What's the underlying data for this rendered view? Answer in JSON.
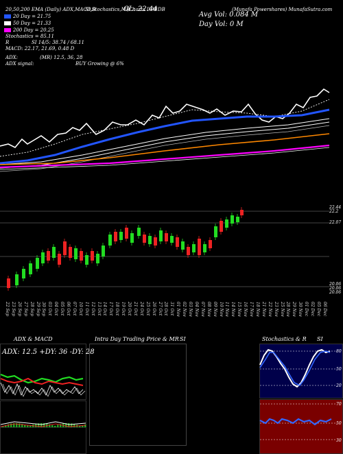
{
  "header": {
    "ema_line": "20,50,200 EMA (Daily) ADX,MACD,B",
    "ema_line2": "SI,Stochastics,MR",
    "cl_label": "CL: 22.44",
    "symbol_line": "(Charts DBB",
    "symbol2": "DB",
    "avg_vol": "Avg Vol: 0.084  M",
    "day_vol": "Day Vol: 0   M",
    "site": "(Munafa Powershares) MunafaSutra.com"
  },
  "legend": [
    {
      "label": "20  Day = 21.75",
      "color": "#2255ff"
    },
    {
      "label": "50  Day = 21.33",
      "color": "#ffffff"
    },
    {
      "label": "200  Day = 20.25",
      "color": "#ff00ff"
    }
  ],
  "indicators": {
    "stochastics": "Stochastics = 85.11",
    "si": "SI  14/5: 38.74 / 68.11",
    "r": "R",
    "macd": "MACD: 22.17, 21.69, 0.48  D",
    "adx": "ADX:",
    "adx_mr": "(MR) 12.5,  36,  28",
    "adx_signal": "ADX  signal:",
    "buy_signal": "BUY Growing @ 6%"
  },
  "price_axis": {
    "top1": "22.44",
    "top2": "22.2",
    "mid": "22.07",
    "low1": "20.06",
    "low2": "20.06",
    "low3": "20.06"
  },
  "x_labels": [
    "22 Sep",
    "23 Sep",
    "26 Sep",
    "27 Sep",
    "28 Sep",
    "29 Sep",
    "30 Sep",
    "03 Oct",
    "04 Oct",
    "05 Oct",
    "06 Oct",
    "07 Oct",
    "10 Oct",
    "11 Oct",
    "12 Oct",
    "13 Oct",
    "14 Oct",
    "17 Oct",
    "18 Oct",
    "19 Oct",
    "20 Oct",
    "21 Oct",
    "24 Oct",
    "25 Oct",
    "26 Oct",
    "27 Oct",
    "28 Oct",
    "31 Oct",
    "01 Nov",
    "02 Nov",
    "03 Nov",
    "04 Nov",
    "07 Nov",
    "08 Nov",
    "09 Nov",
    "10 Nov",
    "11 Nov",
    "14 Nov",
    "15 Nov",
    "16 Nov",
    "17 Nov",
    "18 Nov",
    "21 Nov",
    "22 Nov",
    "23 Nov",
    "25 Nov",
    "28 Nov",
    "29 Nov",
    "30 Nov",
    "01 Dec",
    "02 Dec",
    "05 Dec",
    "06 Dec"
  ],
  "panels": {
    "adx_title": "ADX  & MACD",
    "adx_readout": "ADX: 12.5 +DY: 36 -DY: 28",
    "intraday_title": "Intra  Day Trading Price  & MR",
    "intraday_si": "SI",
    "stoch_title": "Stochastics  & R",
    "stoch_si": "SI",
    "stoch_levels": [
      "80",
      "50",
      "20"
    ],
    "rsi_levels": [
      "70",
      "50",
      "30"
    ]
  },
  "colors": {
    "up": "#22dd22",
    "down": "#ee2222",
    "ema20": "#2255ff",
    "ema50": "#ffffff",
    "ema200": "#ff00ff",
    "orange": "#ff8800"
  }
}
